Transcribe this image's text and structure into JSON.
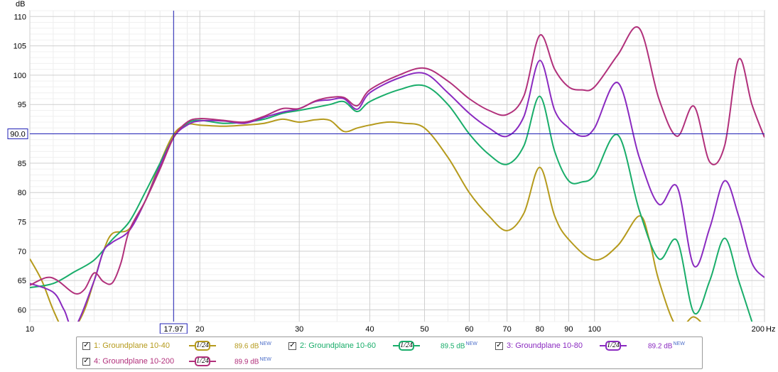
{
  "chart_data": {
    "type": "line",
    "ylabel": "dB",
    "xlabel": "Hz",
    "xscale": "log",
    "xlim": [
      10,
      200
    ],
    "ylim": [
      58,
      111
    ],
    "x_ticks": [
      10,
      20,
      30,
      40,
      50,
      60,
      70,
      80,
      90,
      100,
      200
    ],
    "x_tick_labels": [
      "10",
      "20",
      "30",
      "40",
      "50",
      "60",
      "70",
      "80",
      "90",
      "100",
      "200"
    ],
    "y_ticks": [
      60,
      65,
      70,
      75,
      80,
      85,
      90,
      95,
      100,
      105,
      110
    ],
    "y_tick_labels": [
      "60",
      "65",
      "70",
      "75",
      "80",
      "85",
      "90",
      "95",
      "100",
      "105",
      "110"
    ],
    "grid": true,
    "legend_position": "bottom",
    "cursor": {
      "x": 17.97,
      "y": 90.0,
      "x_label": "17.97",
      "y_label": "90.0"
    },
    "series": [
      {
        "name": "1: Groundplane 10-40",
        "smoothing": "1/24",
        "level": "89.6 dB",
        "color": "#b59a1c",
        "x": [
          10,
          10.5,
          11,
          11.5,
          12,
          12.5,
          13,
          13.5,
          14,
          15,
          16,
          17,
          18,
          19,
          20,
          22,
          24,
          26,
          28,
          30,
          32,
          34,
          36,
          38,
          40,
          43,
          46,
          50,
          55,
          60,
          65,
          70,
          75,
          80,
          85,
          90,
          100,
          110,
          120,
          125,
          130,
          140,
          150,
          160
        ],
        "y": [
          68.7,
          65,
          60,
          56.5,
          57,
          60,
          65,
          70,
          73,
          73.8,
          78.5,
          85,
          90,
          91.6,
          91.5,
          91.3,
          91.5,
          91.8,
          92.5,
          92,
          92.4,
          92.3,
          90.4,
          91,
          91.5,
          92,
          91.8,
          91,
          86,
          80,
          76,
          73.5,
          76.5,
          84.3,
          76,
          72,
          68.5,
          71,
          76,
          72,
          65,
          57,
          58.8,
          56
        ]
      },
      {
        "name": "2: Groundplane 10-60",
        "smoothing": "1/24",
        "level": "89.5 dB",
        "color": "#19ad6a",
        "x": [
          10,
          11,
          12,
          13,
          14,
          15,
          16,
          17,
          18,
          19,
          20,
          22,
          24,
          26,
          28,
          30,
          32,
          34,
          36,
          38,
          40,
          45,
          50,
          55,
          60,
          65,
          70,
          75,
          80,
          85,
          90,
          95,
          100,
          110,
          120,
          130,
          140,
          150,
          160,
          170,
          180,
          190
        ],
        "y": [
          63.8,
          64.5,
          66.5,
          68.5,
          72,
          75,
          80,
          85,
          89.5,
          91.8,
          92.3,
          91.8,
          92,
          92.5,
          93.5,
          94,
          94.5,
          95,
          95.5,
          93.8,
          95.5,
          97.5,
          98.2,
          95,
          90,
          86.5,
          84.8,
          88,
          96.4,
          87,
          82,
          81.8,
          83,
          89.8,
          77,
          68.7,
          71.8,
          59.5,
          65,
          72.2,
          65,
          58
        ]
      },
      {
        "name": "3: Groundplane 10-80",
        "smoothing": "1/24",
        "level": "89.2 dB",
        "color": "#8a2ac0",
        "x": [
          10,
          11,
          11.5,
          12,
          13,
          13.5,
          14,
          15,
          16,
          17,
          18,
          19,
          20,
          22,
          24,
          26,
          28,
          30,
          32,
          34,
          36,
          38,
          40,
          45,
          50,
          55,
          60,
          65,
          70,
          75,
          80,
          85,
          90,
          95,
          100,
          110,
          120,
          130,
          140,
          150,
          160,
          170,
          180,
          190,
          200
        ],
        "y": [
          64.5,
          63,
          60,
          57,
          65,
          70,
          71.5,
          73.5,
          78.5,
          84.5,
          89.5,
          91.5,
          92.2,
          92.2,
          91.8,
          92.8,
          93.7,
          94.3,
          95.5,
          95.8,
          96,
          94.2,
          97,
          99.5,
          100.3,
          97,
          93.5,
          91,
          89.6,
          93,
          102.5,
          94,
          91,
          89.6,
          91,
          98.7,
          86,
          78,
          81,
          67.5,
          74,
          82,
          76,
          68,
          65.5
        ]
      },
      {
        "name": "4: Groundplane 10-200",
        "smoothing": "1/24",
        "level": "89.9 dB",
        "color": "#b1307b",
        "x": [
          10,
          10.7,
          11.2,
          12,
          12.5,
          13,
          13.5,
          14,
          14.5,
          15,
          16,
          17,
          18,
          19,
          20,
          22,
          24,
          26,
          28,
          30,
          32,
          34,
          36,
          38,
          40,
          45,
          50,
          55,
          60,
          65,
          70,
          75,
          80,
          85,
          90,
          95,
          100,
          110,
          120,
          130,
          140,
          150,
          160,
          170,
          180,
          190,
          200
        ],
        "y": [
          64.2,
          65.5,
          65,
          62.8,
          63.5,
          66.3,
          64.8,
          64.6,
          68,
          73.5,
          78.5,
          84,
          89.5,
          92,
          92.6,
          92.3,
          92,
          93,
          94.3,
          94.3,
          95.6,
          96.2,
          96.2,
          94.8,
          97.5,
          100,
          101.2,
          99,
          96,
          94,
          93.3,
          96.5,
          106.8,
          101,
          98,
          97.5,
          98,
          103.5,
          108,
          96,
          89.6,
          94.7,
          85.2,
          88,
          102.7,
          95,
          89.4
        ]
      }
    ]
  }
}
